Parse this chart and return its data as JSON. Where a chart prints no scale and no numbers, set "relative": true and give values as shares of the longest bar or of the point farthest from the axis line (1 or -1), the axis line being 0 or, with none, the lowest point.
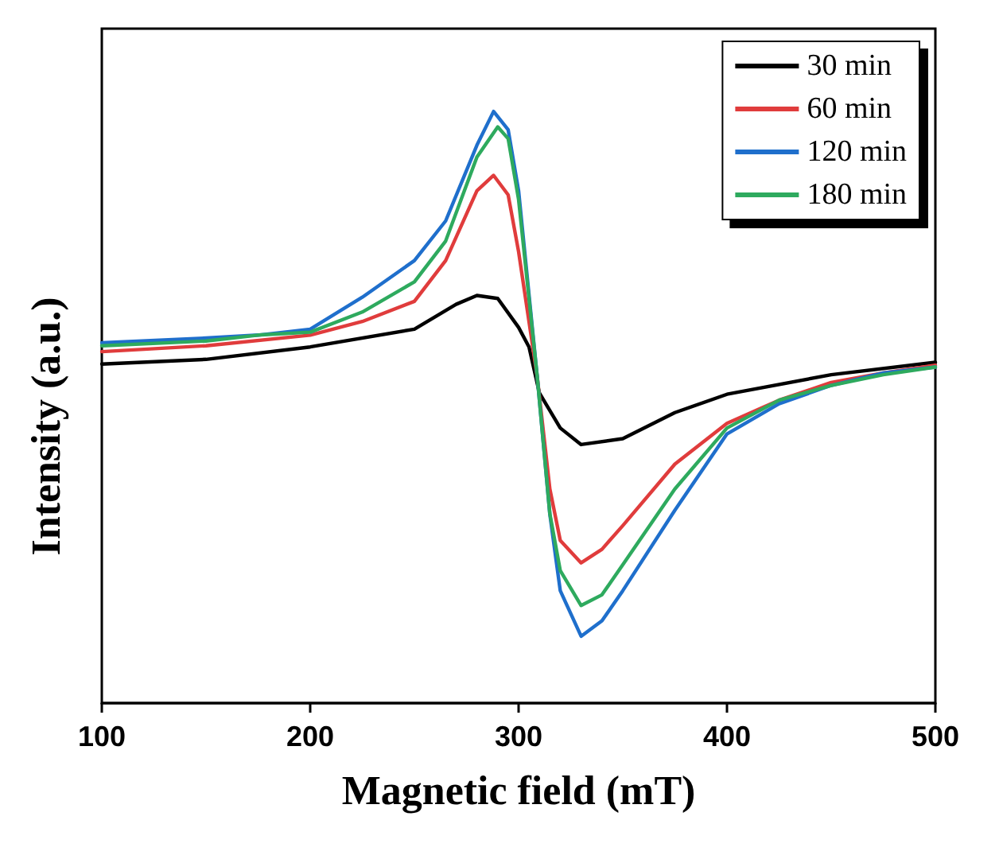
{
  "chart_data": {
    "type": "line",
    "xlabel": "Magnetic field (mT)",
    "ylabel": "Intensity (a.u.)",
    "relative": true,
    "xlim": [
      100,
      500
    ],
    "xticks": [
      100,
      200,
      300,
      400,
      500
    ],
    "grid": false,
    "legend": "top right",
    "marker": "none",
    "line_style": "solid",
    "series": [
      {
        "name": "30 min",
        "color": "#000000",
        "x": [
          100,
          150,
          200,
          250,
          270,
          280,
          290,
          300,
          305,
          310,
          320,
          330,
          350,
          375,
          400,
          450,
          500
        ],
        "values": [
          0.573,
          0.581,
          0.602,
          0.632,
          0.674,
          0.689,
          0.684,
          0.635,
          0.602,
          0.524,
          0.465,
          0.437,
          0.447,
          0.491,
          0.522,
          0.555,
          0.576
        ]
      },
      {
        "name": "60 min",
        "color": "#e03c3c",
        "x": [
          100,
          150,
          200,
          225,
          250,
          265,
          280,
          288,
          295,
          300,
          309,
          315,
          320,
          330,
          340,
          350,
          375,
          400,
          425,
          450,
          475,
          500
        ],
        "values": [
          0.594,
          0.604,
          0.622,
          0.645,
          0.679,
          0.748,
          0.866,
          0.892,
          0.859,
          0.763,
          0.55,
          0.362,
          0.275,
          0.237,
          0.26,
          0.3,
          0.404,
          0.473,
          0.512,
          0.542,
          0.558,
          0.571
        ]
      },
      {
        "name": "120 min",
        "color": "#1f6fcc",
        "x": [
          100,
          150,
          175,
          200,
          225,
          250,
          265,
          280,
          288,
          295,
          300,
          309,
          315,
          320,
          330,
          340,
          350,
          375,
          400,
          425,
          450,
          475,
          500
        ],
        "values": [
          0.609,
          0.617,
          0.622,
          0.632,
          0.686,
          0.748,
          0.815,
          0.943,
          1.0,
          0.969,
          0.866,
          0.55,
          0.319,
          0.19,
          0.113,
          0.139,
          0.19,
          0.326,
          0.455,
          0.506,
          0.537,
          0.558,
          0.568
        ]
      },
      {
        "name": "180 min",
        "color": "#2eaa5e",
        "x": [
          100,
          150,
          175,
          200,
          225,
          250,
          265,
          280,
          290,
          295,
          300,
          309,
          315,
          320,
          330,
          340,
          350,
          375,
          400,
          425,
          450,
          475,
          500
        ],
        "values": [
          0.604,
          0.612,
          0.622,
          0.627,
          0.661,
          0.712,
          0.781,
          0.923,
          0.974,
          0.954,
          0.851,
          0.55,
          0.32,
          0.224,
          0.165,
          0.183,
          0.234,
          0.362,
          0.465,
          0.512,
          0.537,
          0.555,
          0.568
        ]
      }
    ]
  }
}
